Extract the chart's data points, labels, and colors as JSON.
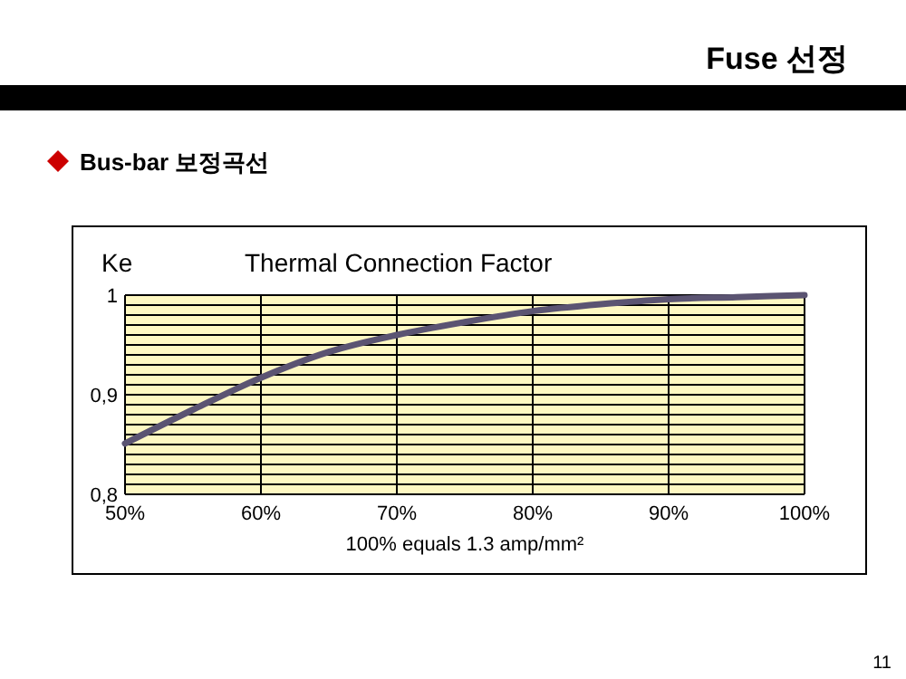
{
  "chart_data": {
    "type": "line",
    "title": "Thermal Connection Factor",
    "ylabel": "Ke",
    "xlabel": "100% equals 1.3 amp/mm²",
    "annotations": [
      "Fuse 선정",
      "Bus-bar 보정곡선",
      "11"
    ],
    "x": [
      50,
      55,
      60,
      65,
      70,
      75,
      80,
      85,
      90,
      95,
      100
    ],
    "series": [
      {
        "color": "#5b5472",
        "values": [
          0.851,
          0.885,
          0.917,
          0.943,
          0.96,
          0.973,
          0.984,
          0.991,
          0.996,
          0.998,
          1.0
        ]
      }
    ],
    "xlim": [
      50,
      100
    ],
    "xticks": [
      {
        "value": 50,
        "label": "50%"
      },
      {
        "value": 60,
        "label": "60%"
      },
      {
        "value": 70,
        "label": "70%"
      },
      {
        "value": 80,
        "label": "80%"
      },
      {
        "value": 90,
        "label": "90%"
      },
      {
        "value": 100,
        "label": "100%"
      }
    ],
    "ylim": [
      0.8,
      1
    ],
    "yticks": [
      {
        "value": 0.8,
        "label": "0,8"
      },
      {
        "value": 0.81,
        "label": null
      },
      {
        "value": 0.82,
        "label": null
      },
      {
        "value": 0.83,
        "label": null
      },
      {
        "value": 0.84,
        "label": null
      },
      {
        "value": 0.85,
        "label": null
      },
      {
        "value": 0.86,
        "label": null
      },
      {
        "value": 0.87,
        "label": null
      },
      {
        "value": 0.88,
        "label": null
      },
      {
        "value": 0.89,
        "label": null
      },
      {
        "value": 0.9,
        "label": "0,9"
      },
      {
        "value": 0.91,
        "label": null
      },
      {
        "value": 0.92,
        "label": null
      },
      {
        "value": 0.93,
        "label": null
      },
      {
        "value": 0.94,
        "label": null
      },
      {
        "value": 0.95,
        "label": null
      },
      {
        "value": 0.96,
        "label": null
      },
      {
        "value": 0.97,
        "label": null
      },
      {
        "value": 0.98,
        "label": null
      },
      {
        "value": 0.99,
        "label": null
      },
      {
        "value": 1,
        "label": "1"
      }
    ],
    "grid": true,
    "marker": "none",
    "line_style": "solid"
  }
}
